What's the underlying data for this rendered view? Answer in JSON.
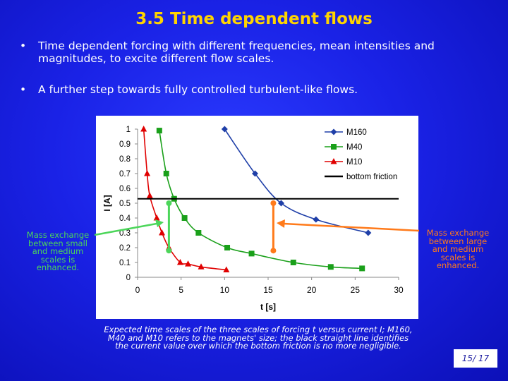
{
  "title": "3.5 Time dependent flows",
  "bullets": [
    {
      "marker": "•",
      "text": "Time dependent forcing with different frequencies, mean intensities and magnitudes, to excite different flow scales."
    },
    {
      "marker": "•",
      "text": "A further step towards fully controlled turbulent-like flows."
    }
  ],
  "annotations": {
    "left": [
      "Mass exchange",
      "between small",
      "and medium",
      "scales is",
      "enhanced."
    ],
    "right": [
      "Mass exchange",
      "between large",
      "and medium",
      "scales is",
      "enhanced."
    ]
  },
  "caption": [
    "Expected time scales of the three scales of forcing t versus current I; M160,",
    "M40 and M10 refers to the magnets' size; the black straight line identifies",
    "the current value over which the bottom friction is no more negligible."
  ],
  "page_number": "15/ 17",
  "colors": {
    "title": "#ffd400",
    "annotation_left": "#4cd65a",
    "annotation_right": "#ff7a1a"
  },
  "chart_data": {
    "type": "line",
    "xlabel": "t [s]",
    "ylabel": "I [A]",
    "xlim": [
      0,
      30
    ],
    "ylim": [
      0,
      1
    ],
    "xticks": [
      "0",
      "5",
      "10",
      "15",
      "20",
      "25",
      "30"
    ],
    "yticks": [
      "0",
      "0.1",
      "0.2",
      "0.3",
      "0.4",
      "0.5",
      "0.6",
      "0.7",
      "0.8",
      "0.9",
      "1"
    ],
    "legend_position": "top-right",
    "series": [
      {
        "name": "M160",
        "color": "#1f3fa8",
        "marker": "diamond",
        "x": [
          10,
          13.5,
          16.5,
          20.5,
          26.5
        ],
        "y": [
          1.0,
          0.7,
          0.5,
          0.39,
          0.3
        ]
      },
      {
        "name": "M40",
        "color": "#1aa01a",
        "marker": "square",
        "x": [
          2.5,
          3.3,
          4.2,
          5.4,
          7.0,
          10.3,
          13.1,
          17.9,
          22.2,
          25.8
        ],
        "y": [
          0.99,
          0.7,
          0.53,
          0.4,
          0.3,
          0.2,
          0.16,
          0.1,
          0.07,
          0.06
        ]
      },
      {
        "name": "M10",
        "color": "#e00000",
        "marker": "triangle",
        "x": [
          0.7,
          1.1,
          1.4,
          2.2,
          2.8,
          3.6,
          4.9,
          5.8,
          7.3,
          10.2
        ],
        "y": [
          1.0,
          0.7,
          0.55,
          0.4,
          0.3,
          0.2,
          0.1,
          0.09,
          0.07,
          0.05
        ]
      },
      {
        "name": "bottom friction",
        "color": "#000000",
        "marker": "none",
        "x": [
          0,
          30
        ],
        "y": [
          0.53,
          0.53
        ]
      }
    ],
    "highlights": [
      {
        "color": "#4cd65a",
        "x": 3.6,
        "y_range": [
          0.18,
          0.5
        ]
      },
      {
        "color": "#ff7a1a",
        "x": 15.6,
        "y_range": [
          0.18,
          0.5
        ]
      }
    ]
  }
}
